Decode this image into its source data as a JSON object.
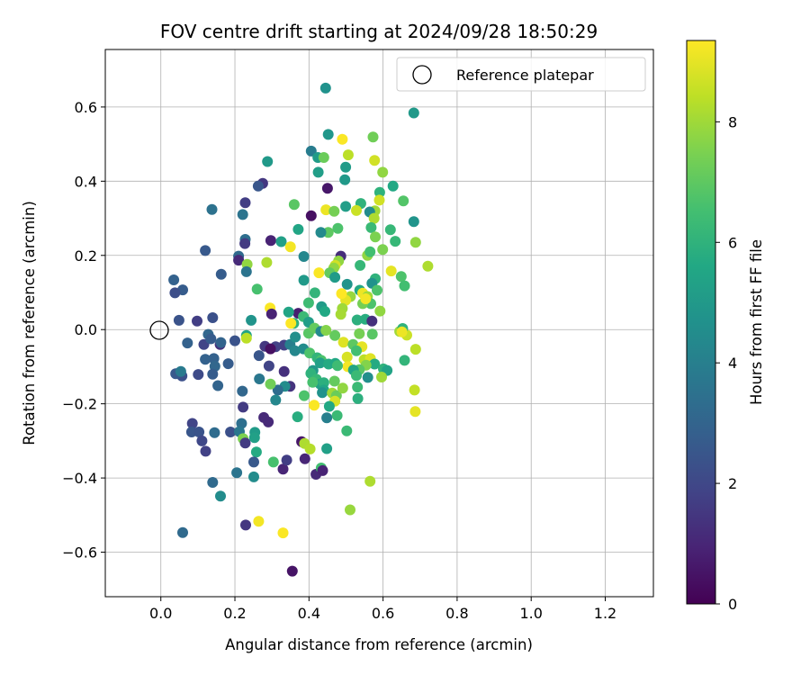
{
  "chart_data": {
    "type": "scatter",
    "title": "FOV centre drift starting at 2024/09/28 18:50:29",
    "xlabel": "Angular distance from reference (arcmin)",
    "ylabel": "Rotation from reference (arcmin)",
    "xlim": [
      -0.15,
      1.33
    ],
    "ylim": [
      -0.72,
      0.755
    ],
    "xticks": [
      0.0,
      0.2,
      0.4,
      0.6,
      0.8,
      1.0,
      1.2
    ],
    "xtick_labels": [
      "0.0",
      "0.2",
      "0.4",
      "0.6",
      "0.8",
      "1.0",
      "1.2"
    ],
    "yticks": [
      -0.6,
      -0.4,
      -0.2,
      0.0,
      0.2,
      0.4,
      0.6
    ],
    "ytick_labels": [
      "−0.6",
      "−0.4",
      "−0.2",
      "0.0",
      "0.2",
      "0.4",
      "0.6"
    ],
    "grid": true,
    "legend": {
      "position": "top-right",
      "entries": [
        "Reference platepar"
      ]
    },
    "reference_point": {
      "x": 0.0,
      "y": 0.0
    },
    "colorbar": {
      "label": "Hours from first FF file",
      "colormap": "viridis",
      "range": [
        0,
        9.35
      ],
      "ticks": [
        0,
        2,
        4,
        6,
        8
      ],
      "tick_labels": [
        "0",
        "2",
        "4",
        "6",
        "8"
      ]
    },
    "points": [
      [
        0.445,
        0.651,
        4.7
      ],
      [
        0.683,
        0.584,
        5.0
      ],
      [
        0.452,
        0.526,
        4.9
      ],
      [
        0.573,
        0.519,
        7.3
      ],
      [
        0.49,
        0.513,
        9.3
      ],
      [
        0.406,
        0.481,
        3.9
      ],
      [
        0.424,
        0.464,
        5.1
      ],
      [
        0.44,
        0.464,
        7.2
      ],
      [
        0.506,
        0.471,
        8.4
      ],
      [
        0.288,
        0.453,
        5.0
      ],
      [
        0.577,
        0.456,
        8.7
      ],
      [
        0.499,
        0.438,
        5.1
      ],
      [
        0.599,
        0.424,
        7.8
      ],
      [
        0.425,
        0.424,
        5.2
      ],
      [
        0.497,
        0.404,
        5.0
      ],
      [
        0.275,
        0.394,
        1.5
      ],
      [
        0.263,
        0.387,
        2.5
      ],
      [
        0.45,
        0.381,
        0.6
      ],
      [
        0.627,
        0.387,
        5.6
      ],
      [
        0.591,
        0.37,
        6.0
      ],
      [
        0.228,
        0.342,
        1.7
      ],
      [
        0.138,
        0.324,
        3.5
      ],
      [
        0.36,
        0.337,
        6.9
      ],
      [
        0.446,
        0.323,
        9.1
      ],
      [
        0.406,
        0.307,
        0.4
      ],
      [
        0.468,
        0.319,
        7.4
      ],
      [
        0.499,
        0.332,
        5.2
      ],
      [
        0.54,
        0.34,
        6.0
      ],
      [
        0.528,
        0.321,
        8.6
      ],
      [
        0.578,
        0.32,
        8.0
      ],
      [
        0.564,
        0.317,
        4.5
      ],
      [
        0.59,
        0.349,
        8.7
      ],
      [
        0.655,
        0.347,
        6.8
      ],
      [
        0.576,
        0.3,
        8.2
      ],
      [
        0.683,
        0.291,
        4.8
      ],
      [
        0.221,
        0.31,
        3.6
      ],
      [
        0.228,
        0.243,
        3.4
      ],
      [
        0.227,
        0.232,
        1.6
      ],
      [
        0.297,
        0.24,
        0.9
      ],
      [
        0.371,
        0.27,
        5.5
      ],
      [
        0.478,
        0.273,
        6.7
      ],
      [
        0.452,
        0.262,
        7.0
      ],
      [
        0.432,
        0.262,
        4.4
      ],
      [
        0.568,
        0.275,
        6.3
      ],
      [
        0.62,
        0.269,
        6.2
      ],
      [
        0.579,
        0.25,
        7.5
      ],
      [
        0.688,
        0.235,
        7.8
      ],
      [
        0.633,
        0.238,
        6.2
      ],
      [
        0.325,
        0.237,
        5.3
      ],
      [
        0.35,
        0.223,
        9.2
      ],
      [
        0.599,
        0.216,
        7.5
      ],
      [
        0.558,
        0.2,
        7.8
      ],
      [
        0.565,
        0.21,
        6.5
      ],
      [
        0.486,
        0.198,
        1.2
      ],
      [
        0.48,
        0.185,
        7.8
      ],
      [
        0.471,
        0.173,
        8.7
      ],
      [
        0.467,
        0.166,
        7.8
      ],
      [
        0.538,
        0.173,
        6.2
      ],
      [
        0.386,
        0.197,
        4.3
      ],
      [
        0.286,
        0.181,
        8.2
      ],
      [
        0.21,
        0.198,
        3.2
      ],
      [
        0.21,
        0.187,
        1.1
      ],
      [
        0.233,
        0.176,
        7.8
      ],
      [
        0.231,
        0.156,
        3.6
      ],
      [
        0.163,
        0.149,
        2.7
      ],
      [
        0.12,
        0.213,
        2.6
      ],
      [
        0.035,
        0.134,
        2.9
      ],
      [
        0.059,
        0.107,
        2.7
      ],
      [
        0.038,
        0.099,
        2.2
      ],
      [
        0.427,
        0.153,
        9.3
      ],
      [
        0.456,
        0.153,
        7.1
      ],
      [
        0.47,
        0.141,
        5.1
      ],
      [
        0.622,
        0.158,
        9.0
      ],
      [
        0.649,
        0.143,
        6.7
      ],
      [
        0.658,
        0.118,
        6.5
      ],
      [
        0.721,
        0.171,
        8.2
      ],
      [
        0.579,
        0.137,
        6.0
      ],
      [
        0.57,
        0.125,
        4.7
      ],
      [
        0.503,
        0.122,
        4.8
      ],
      [
        0.537,
        0.106,
        5.6
      ],
      [
        0.386,
        0.133,
        5.0
      ],
      [
        0.26,
        0.109,
        6.6
      ],
      [
        0.584,
        0.106,
        6.7
      ],
      [
        0.545,
        0.098,
        9.1
      ],
      [
        0.558,
        0.089,
        8.0
      ],
      [
        0.567,
        0.07,
        6.7
      ],
      [
        0.545,
        0.07,
        7.4
      ],
      [
        0.592,
        0.05,
        7.8
      ],
      [
        0.512,
        0.089,
        7.9
      ],
      [
        0.499,
        0.079,
        9.0
      ],
      [
        0.488,
        0.097,
        9.4
      ],
      [
        0.553,
        0.083,
        9.2
      ],
      [
        0.49,
        0.057,
        8.0
      ],
      [
        0.486,
        0.041,
        8.1
      ],
      [
        0.434,
        0.062,
        5.1
      ],
      [
        0.443,
        0.049,
        5.6
      ],
      [
        0.399,
        0.072,
        6.4
      ],
      [
        0.416,
        0.099,
        6.1
      ],
      [
        0.295,
        0.058,
        9.3
      ],
      [
        0.299,
        0.042,
        0.9
      ],
      [
        0.371,
        0.044,
        0.8
      ],
      [
        0.385,
        0.035,
        6.3
      ],
      [
        0.345,
        0.047,
        5.5
      ],
      [
        0.359,
        0.017,
        6.0
      ],
      [
        0.351,
        0.017,
        9.5
      ],
      [
        0.399,
        0.02,
        5.2
      ],
      [
        0.399,
        -0.01,
        6.9
      ],
      [
        0.415,
        0.004,
        7.1
      ],
      [
        0.432,
        -0.005,
        4.4
      ],
      [
        0.47,
        -0.016,
        7.1
      ],
      [
        0.446,
        -0.002,
        7.6
      ],
      [
        0.493,
        -0.034,
        8.9
      ],
      [
        0.53,
        0.026,
        5.9
      ],
      [
        0.552,
        0.028,
        5.8
      ],
      [
        0.536,
        -0.011,
        7.4
      ],
      [
        0.571,
        -0.012,
        6.9
      ],
      [
        0.57,
        0.023,
        1.3
      ],
      [
        0.519,
        -0.04,
        7.0
      ],
      [
        0.543,
        -0.046,
        9.0
      ],
      [
        0.528,
        -0.057,
        6.5
      ],
      [
        0.664,
        -0.015,
        8.6
      ],
      [
        0.645,
        -0.005,
        8.0
      ],
      [
        0.653,
        0.003,
        6.0
      ],
      [
        0.651,
        -0.006,
        9.1
      ],
      [
        0.688,
        -0.053,
        8.4
      ],
      [
        0.658,
        -0.083,
        6.1
      ],
      [
        0.685,
        -0.163,
        8.5
      ],
      [
        0.687,
        -0.221,
        9.0
      ],
      [
        0.244,
        0.025,
        4.8
      ],
      [
        0.2,
        -0.03,
        2.4
      ],
      [
        0.16,
        -0.04,
        1.3
      ],
      [
        0.14,
        0.032,
        2.3
      ],
      [
        0.116,
        -0.04,
        1.9
      ],
      [
        0.098,
        0.023,
        1.7
      ],
      [
        0.049,
        0.025,
        2.4
      ],
      [
        0.072,
        -0.036,
        2.9
      ],
      [
        0.128,
        -0.013,
        3.1
      ],
      [
        0.135,
        -0.025,
        2.7
      ],
      [
        0.162,
        -0.035,
        3.0
      ],
      [
        0.231,
        -0.016,
        5.4
      ],
      [
        0.231,
        -0.023,
        8.4
      ],
      [
        0.281,
        -0.045,
        1.5
      ],
      [
        0.31,
        -0.046,
        1.8
      ],
      [
        0.296,
        -0.052,
        0.4
      ],
      [
        0.265,
        -0.07,
        2.5
      ],
      [
        0.333,
        -0.042,
        1.8
      ],
      [
        0.349,
        -0.04,
        4.0
      ],
      [
        0.362,
        -0.057,
        4.3
      ],
      [
        0.363,
        -0.02,
        4.6
      ],
      [
        0.385,
        -0.052,
        4.5
      ],
      [
        0.402,
        -0.063,
        6.7
      ],
      [
        0.422,
        -0.076,
        6.1
      ],
      [
        0.433,
        -0.083,
        6.7
      ],
      [
        0.43,
        -0.09,
        5.3
      ],
      [
        0.453,
        -0.093,
        5.7
      ],
      [
        0.471,
        -0.091,
        5.6
      ],
      [
        0.503,
        -0.074,
        8.8
      ],
      [
        0.505,
        -0.1,
        9.2
      ],
      [
        0.549,
        -0.081,
        8.4
      ],
      [
        0.566,
        -0.078,
        8.9
      ],
      [
        0.577,
        -0.093,
        5.7
      ],
      [
        0.554,
        -0.096,
        7.6
      ],
      [
        0.536,
        -0.108,
        6.9
      ],
      [
        0.601,
        -0.106,
        6.0
      ],
      [
        0.611,
        -0.11,
        5.4
      ],
      [
        0.596,
        -0.128,
        8.0
      ],
      [
        0.52,
        -0.109,
        5.5
      ],
      [
        0.528,
        -0.124,
        6.3
      ],
      [
        0.559,
        -0.129,
        4.6
      ],
      [
        0.477,
        -0.097,
        6.4
      ],
      [
        0.469,
        -0.139,
        7.1
      ],
      [
        0.411,
        -0.11,
        5.0
      ],
      [
        0.405,
        -0.118,
        6.0
      ],
      [
        0.42,
        -0.134,
        6.2
      ],
      [
        0.43,
        -0.147,
        5.3
      ],
      [
        0.44,
        -0.143,
        5.9
      ],
      [
        0.41,
        -0.142,
        6.6
      ],
      [
        0.44,
        -0.163,
        5.5
      ],
      [
        0.436,
        -0.17,
        4.7
      ],
      [
        0.463,
        -0.171,
        8.0
      ],
      [
        0.474,
        -0.178,
        7.2
      ],
      [
        0.414,
        -0.204,
        9.3
      ],
      [
        0.47,
        -0.193,
        8.8
      ],
      [
        0.491,
        -0.158,
        7.8
      ],
      [
        0.532,
        -0.186,
        5.9
      ],
      [
        0.531,
        -0.155,
        6.3
      ],
      [
        0.455,
        -0.207,
        5.6
      ],
      [
        0.476,
        -0.232,
        6.3
      ],
      [
        0.448,
        -0.238,
        4.0
      ],
      [
        0.502,
        -0.273,
        6.3
      ],
      [
        0.387,
        -0.178,
        6.7
      ],
      [
        0.349,
        -0.153,
        1.4
      ],
      [
        0.335,
        -0.153,
        4.5
      ],
      [
        0.316,
        -0.163,
        3.3
      ],
      [
        0.31,
        -0.19,
        4.3
      ],
      [
        0.296,
        -0.147,
        7.3
      ],
      [
        0.292,
        -0.098,
        1.9
      ],
      [
        0.333,
        -0.113,
        1.3
      ],
      [
        0.266,
        -0.133,
        3.7
      ],
      [
        0.22,
        -0.166,
        3.1
      ],
      [
        0.182,
        -0.092,
        2.7
      ],
      [
        0.143,
        -0.078,
        2.9
      ],
      [
        0.146,
        -0.099,
        3.1
      ],
      [
        0.12,
        -0.08,
        2.9
      ],
      [
        0.14,
        -0.12,
        2.7
      ],
      [
        0.154,
        -0.151,
        3.0
      ],
      [
        0.101,
        -0.121,
        2.1
      ],
      [
        0.049,
        -0.117,
        2.5
      ],
      [
        0.057,
        -0.125,
        2.3
      ],
      [
        0.04,
        -0.119,
        2.6
      ],
      [
        0.054,
        -0.113,
        3.8
      ],
      [
        0.085,
        -0.253,
        1.9
      ],
      [
        0.083,
        -0.276,
        2.5
      ],
      [
        0.103,
        -0.276,
        2.4
      ],
      [
        0.111,
        -0.3,
        2.0
      ],
      [
        0.121,
        -0.328,
        1.8
      ],
      [
        0.145,
        -0.278,
        3.3
      ],
      [
        0.188,
        -0.276,
        2.3
      ],
      [
        0.218,
        -0.253,
        3.4
      ],
      [
        0.212,
        -0.275,
        3.7
      ],
      [
        0.222,
        -0.209,
        1.6
      ],
      [
        0.222,
        -0.294,
        7.5
      ],
      [
        0.228,
        -0.306,
        1.6
      ],
      [
        0.254,
        -0.277,
        5.1
      ],
      [
        0.253,
        -0.291,
        5.3
      ],
      [
        0.258,
        -0.33,
        5.7
      ],
      [
        0.278,
        -0.237,
        1.1
      ],
      [
        0.29,
        -0.249,
        1.1
      ],
      [
        0.369,
        -0.235,
        5.8
      ],
      [
        0.304,
        -0.357,
        6.6
      ],
      [
        0.251,
        -0.357,
        2.6
      ],
      [
        0.33,
        -0.376,
        1.0
      ],
      [
        0.34,
        -0.352,
        1.7
      ],
      [
        0.38,
        -0.302,
        0.6
      ],
      [
        0.388,
        -0.307,
        8.2
      ],
      [
        0.403,
        -0.322,
        8.3
      ],
      [
        0.448,
        -0.321,
        5.3
      ],
      [
        0.419,
        -0.39,
        1.1
      ],
      [
        0.433,
        -0.373,
        6.5
      ],
      [
        0.437,
        -0.38,
        0.9
      ],
      [
        0.389,
        -0.348,
        1.0
      ],
      [
        0.251,
        -0.397,
        4.5
      ],
      [
        0.205,
        -0.386,
        3.6
      ],
      [
        0.14,
        -0.412,
        3.2
      ],
      [
        0.161,
        -0.449,
        4.5
      ],
      [
        0.229,
        -0.527,
        1.5
      ],
      [
        0.059,
        -0.547,
        3.2
      ],
      [
        0.264,
        -0.517,
        9.2
      ],
      [
        0.33,
        -0.548,
        9.3
      ],
      [
        0.511,
        -0.486,
        7.9
      ],
      [
        0.565,
        -0.409,
        8.2
      ],
      [
        0.355,
        -0.651,
        0.5
      ]
    ]
  }
}
